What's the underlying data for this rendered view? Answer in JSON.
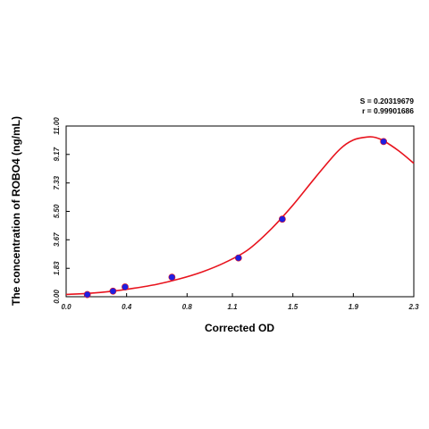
{
  "chart_data": {
    "type": "scatter",
    "xlabel": "Corrected OD",
    "ylabel": "The concentration of ROBO4 (ng/mL)",
    "xlim": [
      0.0,
      2.3
    ],
    "ylim": [
      0.0,
      11.0
    ],
    "x_ticks": [
      "0.0",
      "0.4",
      "0.8",
      "1.1",
      "1.5",
      "1.9",
      "2.3"
    ],
    "y_ticks": [
      "0.00",
      "1.83",
      "3.67",
      "5.50",
      "7.33",
      "9.17",
      "11.00"
    ],
    "grid": false,
    "stats": {
      "s_label": "S = 0.20319679",
      "r_label": "r = 0.99901686"
    },
    "points": [
      {
        "x": 0.14,
        "y": 0.14
      },
      {
        "x": 0.31,
        "y": 0.36
      },
      {
        "x": 0.39,
        "y": 0.63
      },
      {
        "x": 0.7,
        "y": 1.26
      },
      {
        "x": 1.14,
        "y": 2.5
      },
      {
        "x": 1.43,
        "y": 5.0
      },
      {
        "x": 2.1,
        "y": 10.0
      }
    ],
    "fit_curve": {
      "x": [
        0.0,
        0.15,
        0.3,
        0.45,
        0.6,
        0.75,
        0.9,
        1.05,
        1.2,
        1.35,
        1.5,
        1.65,
        1.8,
        1.9,
        2.0,
        2.05,
        2.1,
        2.2,
        2.3
      ],
      "y": [
        0.15,
        0.22,
        0.35,
        0.55,
        0.8,
        1.15,
        1.6,
        2.2,
        3.0,
        4.3,
        5.9,
        7.7,
        9.4,
        10.1,
        10.3,
        10.25,
        10.05,
        9.4,
        8.6
      ]
    },
    "colors": {
      "curve": "#e8141e",
      "point": "#1f1fe0",
      "axis": "#000000"
    }
  }
}
